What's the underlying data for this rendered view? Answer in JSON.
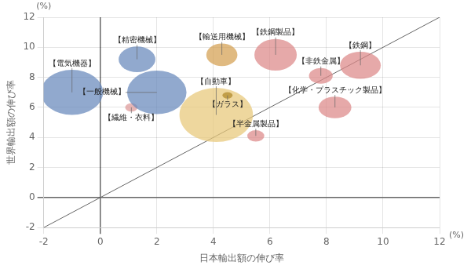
{
  "chart_data": {
    "type": "bubble",
    "xlabel": "日本輸出額の伸び率",
    "ylabel": "世界輸出額の伸び率",
    "labels": [
      "【電気機器】",
      "【精密機械】",
      "【繊維・衣料】",
      "【一般機械】",
      "【輸送用機械】",
      "【自動車】",
      "【ガラス】",
      "【鉄鋼製品】",
      "【鉄鋼】",
      "【非鉄金属】",
      "【化学・プラスチック製品】",
      "【半金属製品】"
    ],
    "x": [
      -1.0,
      1.3,
      1.1,
      2.0,
      4.3,
      4.1,
      4.5,
      6.2,
      9.2,
      7.8,
      8.3,
      5.5
    ],
    "values": [
      7.0,
      9.2,
      6.0,
      7.0,
      9.5,
      5.5,
      6.8,
      9.5,
      8.8,
      8.1,
      6.0,
      4.1
    ],
    "rx": [
      1.1,
      0.65,
      0.22,
      1.05,
      0.55,
      1.3,
      0.18,
      0.75,
      0.72,
      0.42,
      0.58,
      0.3
    ],
    "ry": [
      1.5,
      0.85,
      0.28,
      1.45,
      0.75,
      1.8,
      0.22,
      1.05,
      0.9,
      0.52,
      0.72,
      0.38
    ],
    "colors": [
      "#6688bb",
      "#6688bb",
      "#dd9999",
      "#6688bb",
      "#d4a050",
      "#e8c878",
      "#b08828",
      "#dd8888",
      "#dd8888",
      "#dd8888",
      "#dd8888",
      "#dd8888"
    ],
    "xlim": [
      -2,
      12
    ],
    "ylim": [
      -2,
      12
    ],
    "xticks": [
      -2,
      0,
      2,
      4,
      6,
      8,
      10,
      12
    ],
    "yticks": [
      -2,
      0,
      2,
      4,
      6,
      8,
      10,
      12
    ],
    "grid": true,
    "annotations": [
      {
        "text": "(%)",
        "axis": "y"
      },
      {
        "text": "(%)",
        "axis": "x"
      }
    ]
  }
}
